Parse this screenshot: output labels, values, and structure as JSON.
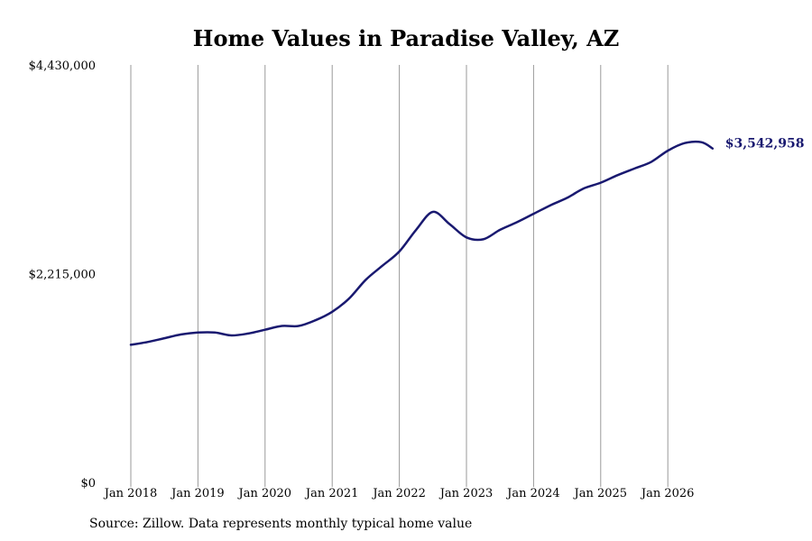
{
  "chart_data": {
    "type": "line",
    "title": "Home Values in Paradise Valley, AZ",
    "xlabel": "",
    "ylabel": "",
    "ylim": [
      0,
      4430000
    ],
    "y_ticks": [
      "$4,430,000",
      "$2,215,000",
      "$0"
    ],
    "y_tick_values": [
      4430000,
      2215000,
      0
    ],
    "x_ticks": [
      "Jan 2018",
      "Jan 2019",
      "Jan 2020",
      "Jan 2021",
      "Jan 2022",
      "Jan 2023",
      "Jan 2024",
      "Jan 2025",
      "Jan 2026"
    ],
    "grid": "vertical",
    "line_color": "#191970",
    "end_label": "$3,542,958",
    "series": [
      {
        "x": [
          "2018-01",
          "2018-04",
          "2018-07",
          "2018-10",
          "2019-01",
          "2019-04",
          "2019-07",
          "2019-10",
          "2020-01",
          "2020-04",
          "2020-07",
          "2020-10",
          "2021-01",
          "2021-04",
          "2021-07",
          "2021-10",
          "2022-01",
          "2022-04",
          "2022-07",
          "2022-10",
          "2023-01",
          "2023-04",
          "2023-07",
          "2023-10",
          "2024-01",
          "2024-04",
          "2024-07",
          "2024-10",
          "2025-01",
          "2025-04",
          "2025-07",
          "2025-10",
          "2026-01",
          "2026-04",
          "2026-07",
          "2026-09"
        ],
        "values": [
          1460000,
          1490000,
          1530000,
          1570000,
          1590000,
          1590000,
          1560000,
          1580000,
          1620000,
          1660000,
          1660000,
          1720000,
          1810000,
          1950000,
          2150000,
          2300000,
          2450000,
          2680000,
          2870000,
          2740000,
          2600000,
          2580000,
          2680000,
          2760000,
          2850000,
          2940000,
          3020000,
          3120000,
          3180000,
          3260000,
          3330000,
          3400000,
          3520000,
          3600000,
          3610000,
          3542958
        ]
      }
    ],
    "source": "Source: Zillow. Data represents monthly typical home value"
  }
}
